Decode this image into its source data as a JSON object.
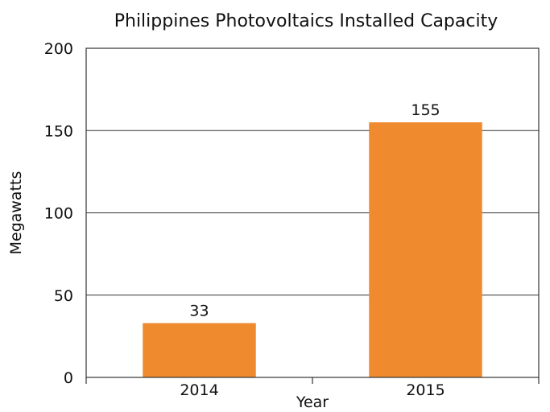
{
  "chart_data": {
    "type": "bar",
    "title": "Philippines Photovoltaics Installed Capacity",
    "xlabel": "Year",
    "ylabel": "Megawatts",
    "categories": [
      "2014",
      "2015"
    ],
    "values": [
      33,
      155
    ],
    "data_labels": [
      "33",
      "155"
    ],
    "ylim": [
      0,
      200
    ],
    "yticks": [
      0,
      50,
      100,
      150,
      200
    ],
    "grid": "horizontal",
    "legend": "none",
    "bar_color": "#f08a2e"
  }
}
